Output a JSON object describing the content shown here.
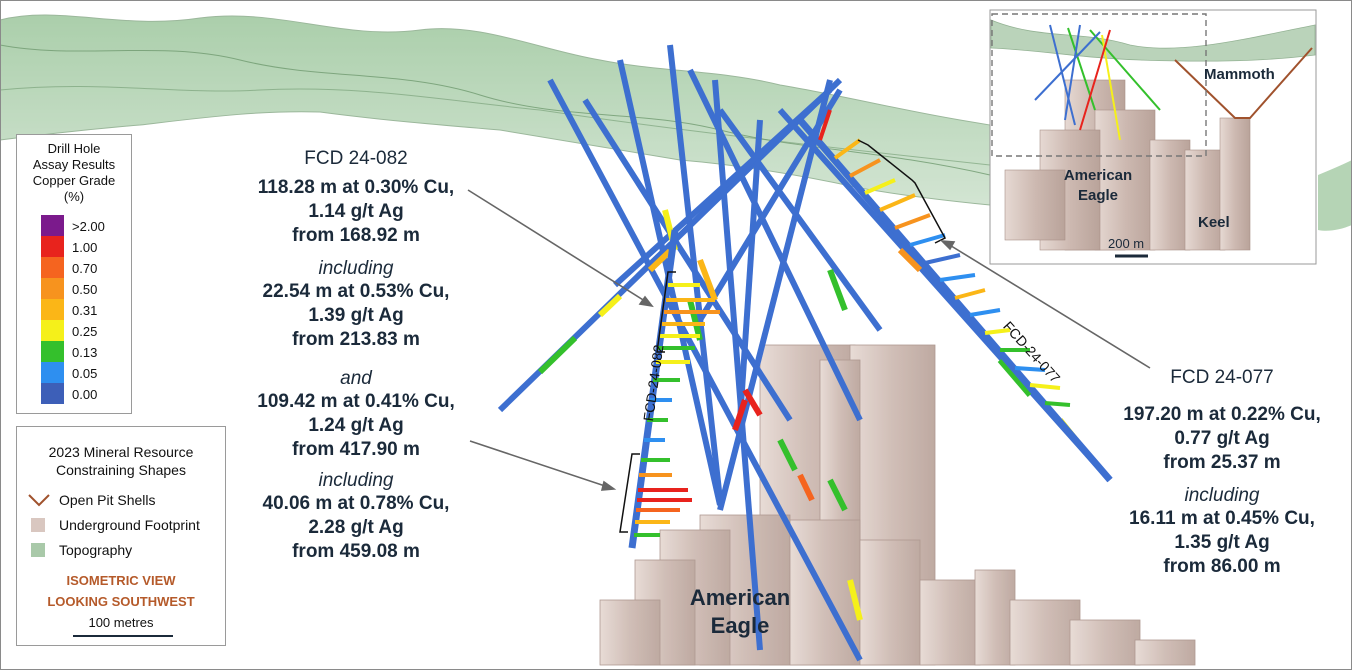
{
  "copper_legend": {
    "title_lines": [
      "Drill Hole",
      "Assay Results",
      "Copper Grade",
      "(%)"
    ],
    "grades": [
      {
        "label": ">2.00",
        "color": "#7b1a8c"
      },
      {
        "label": "1.00",
        "color": "#e8231d"
      },
      {
        "label": "0.70",
        "color": "#f5641f"
      },
      {
        "label": "0.50",
        "color": "#f7931e"
      },
      {
        "label": "0.31",
        "color": "#fbb617"
      },
      {
        "label": "0.25",
        "color": "#f5f01a"
      },
      {
        "label": "0.13",
        "color": "#34c02c"
      },
      {
        "label": "0.05",
        "color": "#2e8ff0"
      },
      {
        "label": "0.00",
        "color": "#3d5fb8"
      }
    ]
  },
  "resource_legend": {
    "title_lines": [
      "2023 Mineral Resource",
      "Constraining Shapes"
    ],
    "items": [
      {
        "label": "Open Pit Shells",
        "icon": "pit-shell-icon",
        "color": "#a0522d"
      },
      {
        "label": "Underground Footprint",
        "icon": "underground-footprint-swatch",
        "color": "#d9c7c0"
      },
      {
        "label": "Topography",
        "icon": "topography-swatch",
        "color": "#a9c9a9"
      }
    ],
    "view_lines": [
      "ISOMETRIC VIEW",
      "LOOKING SOUTHWEST"
    ],
    "scale_label": "100 metres"
  },
  "hole_082": {
    "name": "FCD 24-082",
    "intercept_1": [
      "118.28 m at 0.30% Cu,",
      "1.14 g/t Ag",
      "from 168.92 m"
    ],
    "including_1": "including",
    "sub_1": [
      "22.54 m at 0.53% Cu,",
      "1.39 g/t Ag",
      "from 213.83 m"
    ],
    "and_word": "and",
    "intercept_2": [
      "109.42 m at 0.41% Cu,",
      "1.24 g/t Ag",
      "from 417.90 m"
    ],
    "including_2": "including",
    "sub_2": [
      "40.06 m at 0.78% Cu,",
      "2.28 g/t Ag",
      "from 459.08 m"
    ],
    "trace_label": "FCD-24-082"
  },
  "hole_077": {
    "name": "FCD 24-077",
    "intercept_1": [
      "197.20 m at 0.22% Cu,",
      "0.77 g/t Ag",
      "from 25.37 m"
    ],
    "including": "including",
    "sub_1": [
      "16.11 m at 0.45% Cu,",
      "1.35 g/t Ag",
      "from 86.00 m"
    ],
    "trace_label": "FCD-24-077"
  },
  "main_label": [
    "American",
    "Eagle"
  ],
  "inset": {
    "mammoth": "Mammoth",
    "american_eagle": [
      "American",
      "Eagle"
    ],
    "keel": "Keel",
    "scale_label": "200 m"
  }
}
